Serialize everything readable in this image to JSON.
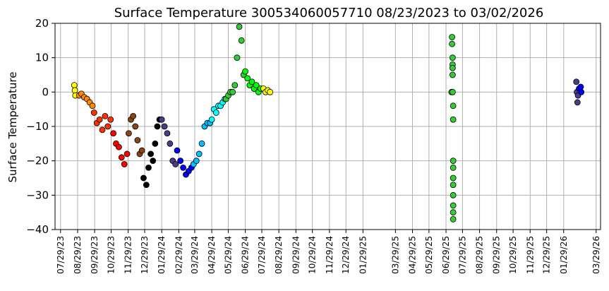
{
  "chart_data": {
    "type": "scatter",
    "title": "Surface Temperature 300534060057710  08/23/2023 to 03/02/2026",
    "xlabel": "",
    "ylabel": "Surface Temperature",
    "ylim": [
      -40,
      20
    ],
    "yticks": [
      -40,
      -30,
      -20,
      -10,
      0,
      10,
      20
    ],
    "xlim": [
      "2023-07-19",
      "2026-04-06"
    ],
    "xticks": [
      "07/29/23",
      "08/29/23",
      "09/29/23",
      "10/29/23",
      "11/29/23",
      "12/29/23",
      "01/29/24",
      "02/29/24",
      "03/29/24",
      "04/29/24",
      "05/29/24",
      "06/29/24",
      "07/29/24",
      "08/29/24",
      "09/29/24",
      "10/29/24",
      "11/29/24",
      "12/29/24",
      "01/29/25",
      "03/29/25",
      "04/29/25",
      "05/29/25",
      "06/29/25",
      "07/29/25",
      "08/29/25",
      "09/29/25",
      "10/29/25",
      "11/29/25",
      "12/29/25",
      "01/29/26",
      "03/29/26"
    ],
    "grid": true,
    "marker_outline": "#000000",
    "series": [
      {
        "color": "#ffff00",
        "x": [
          "2023-08-23",
          "2023-08-24",
          "2023-08-25"
        ],
        "y": [
          2,
          0.5,
          -1
        ]
      },
      {
        "color": "#ff8c00",
        "x": [
          "2023-09-01",
          "2023-09-05",
          "2023-09-10",
          "2023-09-15",
          "2023-09-20",
          "2023-09-25"
        ],
        "y": [
          -1,
          -0.5,
          -1.5,
          -2,
          -3,
          -4
        ]
      },
      {
        "color": "#ff3300",
        "x": [
          "2023-09-28",
          "2023-10-03",
          "2023-10-08",
          "2023-10-13",
          "2023-10-18",
          "2023-10-23",
          "2023-10-28"
        ],
        "y": [
          -6,
          -9,
          -8,
          -11,
          -7,
          -10,
          -8
        ]
      },
      {
        "color": "#ff0000",
        "x": [
          "2023-11-02",
          "2023-11-07",
          "2023-11-12",
          "2023-11-17",
          "2023-11-22",
          "2023-11-27"
        ],
        "y": [
          -12,
          -15,
          -16,
          -19,
          -21,
          -18
        ]
      },
      {
        "color": "#8b4513",
        "x": [
          "2023-11-30",
          "2023-12-04",
          "2023-12-08",
          "2023-12-12",
          "2023-12-16",
          "2023-12-20",
          "2023-12-24"
        ],
        "y": [
          -12,
          -8,
          -7,
          -10,
          -14,
          -18,
          -17
        ]
      },
      {
        "color": "#000000",
        "x": [
          "2023-12-27",
          "2024-01-01",
          "2024-01-05",
          "2024-01-09",
          "2024-01-13",
          "2024-01-17",
          "2024-01-21",
          "2024-01-25"
        ],
        "y": [
          -25,
          -27,
          -22,
          -18,
          -20,
          -15,
          -10,
          -8
        ]
      },
      {
        "color": "#483d8b",
        "x": [
          "2024-01-29",
          "2024-02-03",
          "2024-02-08",
          "2024-02-13",
          "2024-02-18",
          "2024-02-23"
        ],
        "y": [
          -8,
          -10,
          -12,
          -15,
          -20,
          -21
        ]
      },
      {
        "color": "#0000ff",
        "x": [
          "2024-02-26",
          "2024-03-03",
          "2024-03-08",
          "2024-03-13",
          "2024-03-18",
          "2024-03-23"
        ],
        "y": [
          -17,
          -20,
          -22,
          -24,
          -23,
          -22
        ]
      },
      {
        "color": "#00bfff",
        "x": [
          "2024-03-27",
          "2024-04-01",
          "2024-04-06",
          "2024-04-11",
          "2024-04-16",
          "2024-04-21",
          "2024-04-26"
        ],
        "y": [
          -21,
          -20,
          -18,
          -15,
          -10,
          -9,
          -9
        ]
      },
      {
        "color": "#00ffff",
        "x": [
          "2024-04-29",
          "2024-05-03",
          "2024-05-07",
          "2024-05-11",
          "2024-05-15",
          "2024-05-19",
          "2024-05-23"
        ],
        "y": [
          -8,
          -5,
          -6,
          -4,
          -4,
          -3,
          -2
        ]
      },
      {
        "color": "#33cc33",
        "x": [
          "2024-05-25",
          "2024-05-29",
          "2024-06-02",
          "2024-06-06",
          "2024-06-10",
          "2024-06-14",
          "2024-06-18",
          "2024-06-22",
          "2024-06-26"
        ],
        "y": [
          -2,
          -1,
          0,
          0,
          2,
          10,
          19,
          15,
          5
        ]
      },
      {
        "color": "#00ff00",
        "x": [
          "2024-06-29",
          "2024-07-03",
          "2024-07-07",
          "2024-07-11",
          "2024-07-15",
          "2024-07-19",
          "2024-07-23",
          "2024-07-27"
        ],
        "y": [
          6,
          4,
          2,
          3,
          1,
          2,
          0,
          1
        ]
      },
      {
        "color": "#ffff00",
        "x": [
          "2024-08-01",
          "2024-08-05",
          "2024-08-09",
          "2024-08-13"
        ],
        "y": [
          1,
          0,
          0.5,
          0
        ]
      },
      {
        "color": "#33cc33",
        "x": [
          "2025-07-09",
          "2025-07-10",
          "2025-07-10",
          "2025-07-11",
          "2025-07-11",
          "2025-07-11",
          "2025-07-11",
          "2025-07-11",
          "2025-07-12",
          "2025-07-12",
          "2025-07-12",
          "2025-07-12",
          "2025-07-12",
          "2025-07-12",
          "2025-07-12",
          "2025-07-12",
          "2025-07-12",
          "2025-07-12"
        ],
        "y": [
          0,
          16,
          14,
          10,
          8,
          7,
          5,
          0,
          -4,
          -8,
          -20,
          -22,
          -25,
          -27,
          -30,
          -33,
          -35,
          -37
        ]
      },
      {
        "color": "#483d8b",
        "x": [
          "2026-02-21",
          "2026-02-22",
          "2026-02-23",
          "2026-02-24"
        ],
        "y": [
          3,
          0,
          -3,
          -1
        ]
      },
      {
        "color": "#0000ff",
        "x": [
          "2026-02-26",
          "2026-03-01",
          "2026-03-02"
        ],
        "y": [
          1,
          1.5,
          0
        ]
      }
    ]
  }
}
